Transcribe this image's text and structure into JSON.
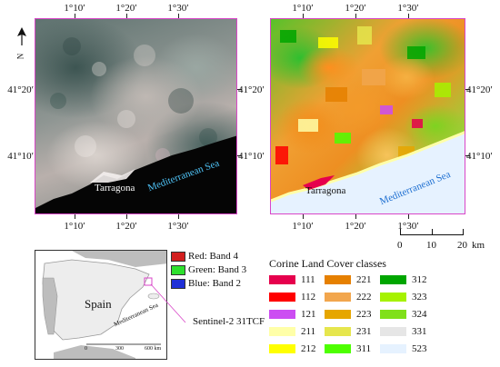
{
  "left_panel": {
    "top_ticks": [
      "1°10′",
      "1°20′",
      "1°30′"
    ],
    "bottom_ticks": [
      "1°10′",
      "1°20′",
      "1°30′"
    ],
    "right_ticks": [
      "41°20′",
      "41°10′"
    ],
    "north_label": "N",
    "city_label": "Tarragona",
    "sea_label": "Mediterranean Sea"
  },
  "right_panel": {
    "top_ticks": [
      "1°10′",
      "1°20′",
      "1°30′"
    ],
    "bottom_ticks": [
      "1°10′",
      "1°20′",
      "1°30′"
    ],
    "left_ticks": [
      "41°20′",
      "41°10′"
    ],
    "right_ticks": [
      "41°20′",
      "41°10′"
    ],
    "city_label": "Tarragona",
    "sea_label": "Mediterranean Sea"
  },
  "scale_bar": {
    "labels": [
      "0",
      "10",
      "20"
    ],
    "unit": "km"
  },
  "band_legend": [
    {
      "label": "Red: Band 4",
      "color": "#d21f1f"
    },
    {
      "label": "Green: Band 3",
      "color": "#2ee02e"
    },
    {
      "label": "Blue: Band 2",
      "color": "#1f2fd6"
    }
  ],
  "tile_label": "Sentinel-2 31TCF",
  "inset": {
    "country_label": "Spain",
    "sea_label": "Mediterranean Sea",
    "scale_labels": [
      "0",
      "300",
      "600 km"
    ]
  },
  "clc_legend": {
    "title": "Corine Land Cover classes",
    "columns": [
      [
        {
          "code": "111",
          "color": "#e6004d"
        },
        {
          "code": "112",
          "color": "#ff0000"
        },
        {
          "code": "121",
          "color": "#cc4df2"
        },
        {
          "code": "211",
          "color": "#ffffa8"
        },
        {
          "code": "212",
          "color": "#ffff00"
        }
      ],
      [
        {
          "code": "221",
          "color": "#e68000"
        },
        {
          "code": "222",
          "color": "#f2a64d"
        },
        {
          "code": "223",
          "color": "#e6a600"
        },
        {
          "code": "231",
          "color": "#e6e64d"
        },
        {
          "code": "311",
          "color": "#4dff00"
        }
      ],
      [
        {
          "code": "312",
          "color": "#00a600"
        },
        {
          "code": "323",
          "color": "#a6f200"
        },
        {
          "code": "324",
          "color": "#80e01a"
        },
        {
          "code": "331",
          "color": "#e6e6e6"
        },
        {
          "code": "523",
          "color": "#e6f2ff"
        }
      ]
    ]
  }
}
